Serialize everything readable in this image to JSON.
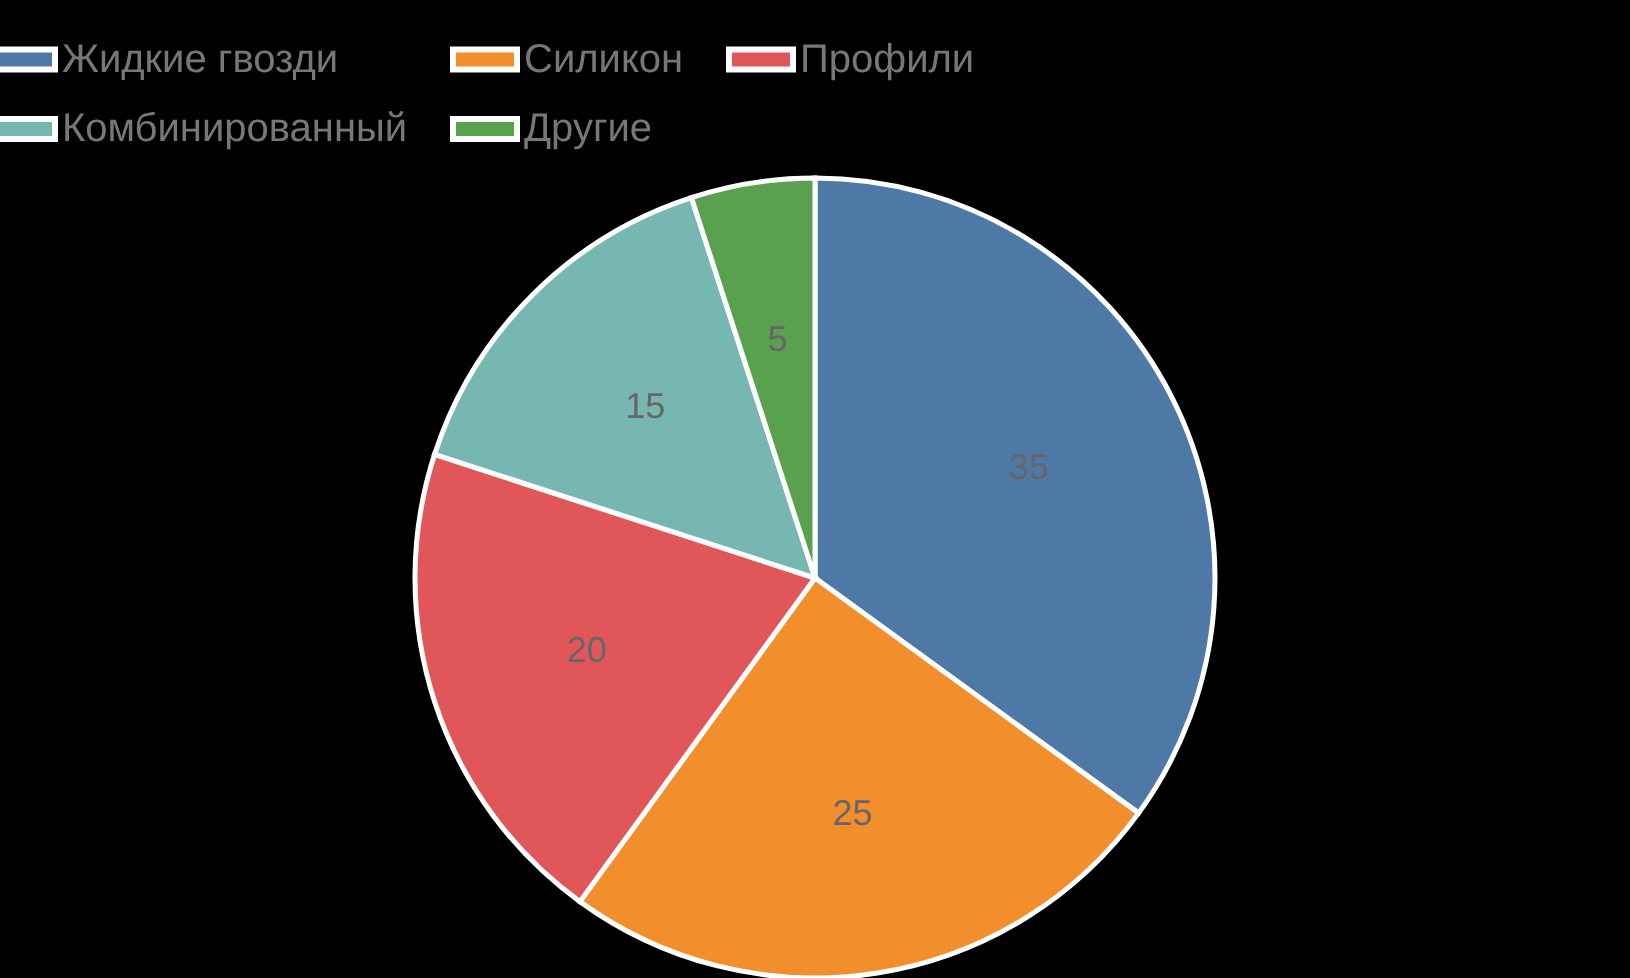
{
  "chart_data": {
    "type": "pie",
    "categories": [
      "Жидкие гвозди",
      "Силикон",
      "Профили",
      "Комбинированный",
      "Другие"
    ],
    "values": [
      35,
      25,
      20,
      15,
      5
    ],
    "colors": [
      "#4e79a7",
      "#f28e2b",
      "#e15759",
      "#76b7b2",
      "#59a14f"
    ],
    "data_labels": true,
    "legend": "top"
  }
}
